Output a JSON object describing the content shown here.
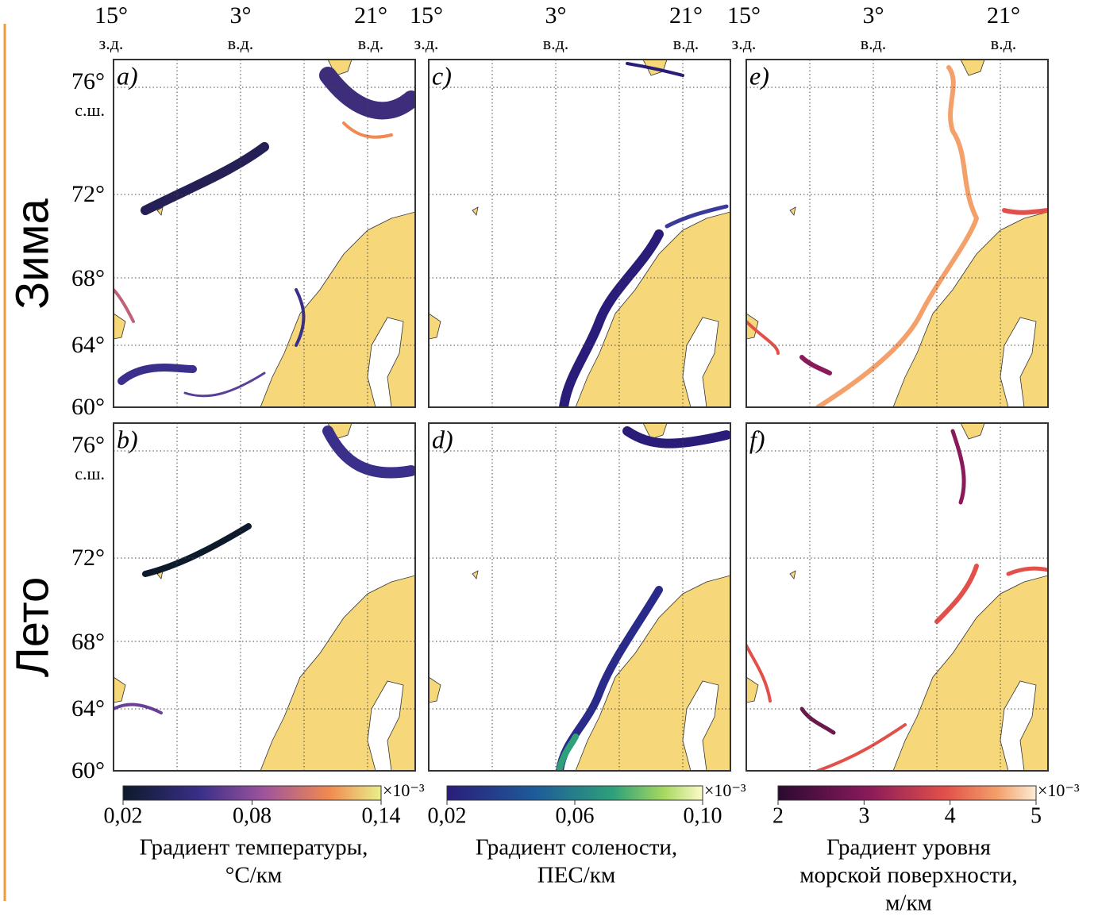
{
  "rows": [
    "Зима",
    "Лето"
  ],
  "lon_ticks": [
    {
      "deg": "15°",
      "hemi": "з.д."
    },
    {
      "deg": "3°",
      "hemi": "в.д."
    },
    {
      "deg": "21°",
      "hemi": "в.д."
    }
  ],
  "lat_ticks": [
    "76°",
    "72°",
    "68°",
    "64°",
    "60°"
  ],
  "lat_hemi": "с.ш.",
  "panels": [
    "a)",
    "b)",
    "c)",
    "d)",
    "e)",
    "f)"
  ],
  "colorbars": [
    {
      "ticks": [
        "0,02",
        "0,08",
        "0,14"
      ],
      "multiplier": "×10⁻³",
      "label": [
        "Градиент температуры,",
        "°C/км"
      ]
    },
    {
      "ticks": [
        "0,02",
        "0,06",
        "0,10"
      ],
      "multiplier": "×10⁻³",
      "label": [
        "Градиент солености,",
        "ПЕС/км"
      ]
    },
    {
      "ticks": [
        "2",
        "3",
        "4",
        "5"
      ],
      "multiplier": "×10⁻³",
      "label": [
        "Градиент уровня",
        "морской поверхности,",
        "м/км"
      ]
    }
  ]
}
